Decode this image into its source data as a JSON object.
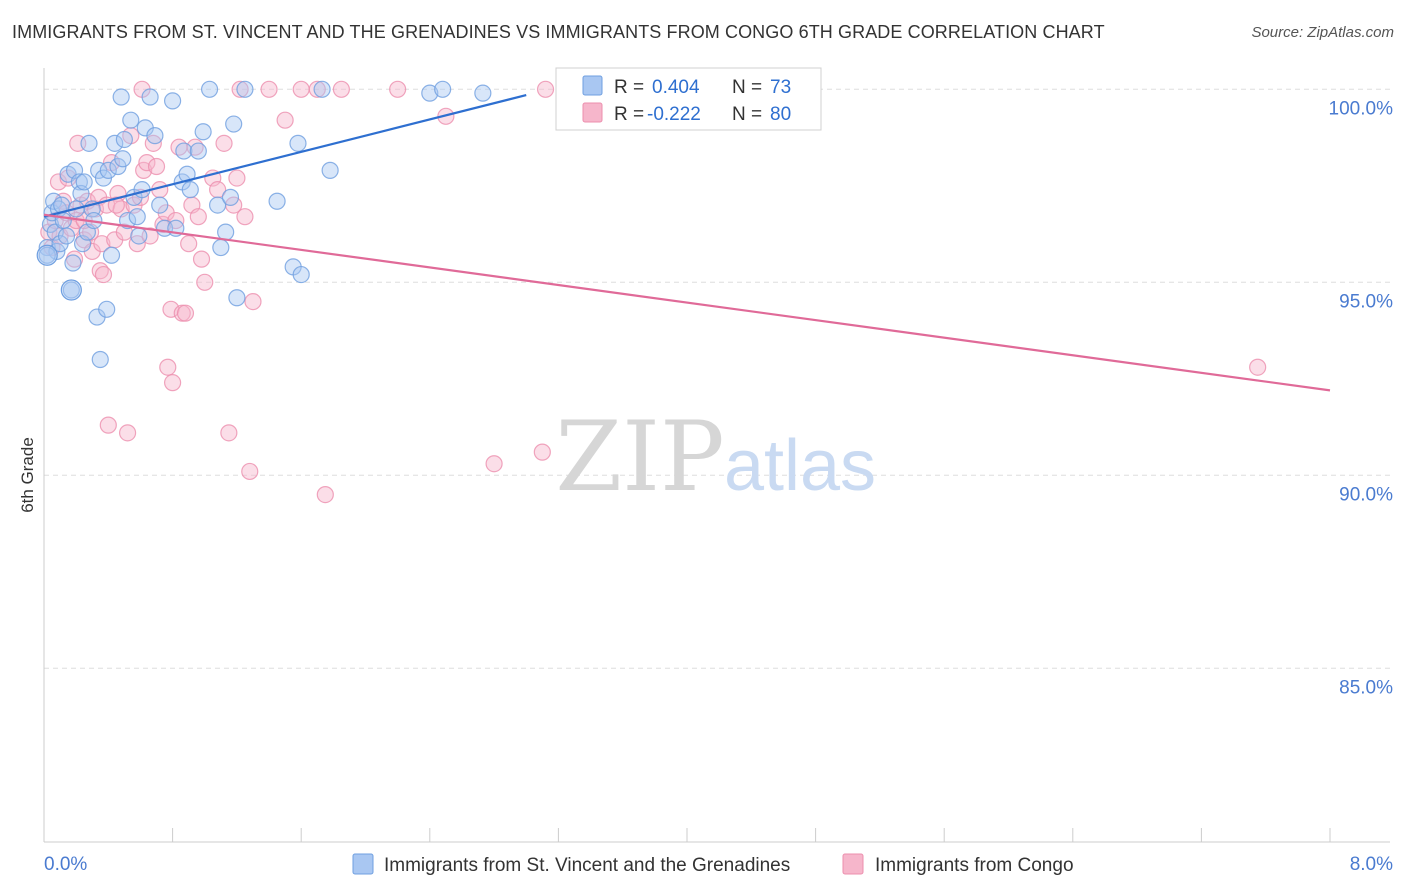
{
  "title": "IMMIGRANTS FROM ST. VINCENT AND THE GRENADINES VS IMMIGRANTS FROM CONGO 6TH GRADE CORRELATION CHART",
  "source": "Source: ZipAtlas.com",
  "watermark": {
    "zip": "ZIP",
    "atlas": "atlas"
  },
  "colors": {
    "blue_fill": "#a9c7f2",
    "blue_stroke": "#6f9fe0",
    "blue_line": "#2e6fd0",
    "pink_fill": "#f6b6cb",
    "pink_stroke": "#ec8fae",
    "pink_line": "#e06a98",
    "axis_text": "#4a7bd0",
    "grid": "#dddddd"
  },
  "legend_box": {
    "rows": [
      {
        "r_label": "R =",
        "r_value": "0.404",
        "n_label": "N =",
        "n_value": "73",
        "series": "blue"
      },
      {
        "r_label": "R =",
        "r_value": "-0.222",
        "n_label": "N =",
        "n_value": "80",
        "series": "pink"
      }
    ]
  },
  "bottom_legend": [
    {
      "label": "Immigrants from St. Vincent and the Grenadines",
      "series": "blue"
    },
    {
      "label": "Immigrants from Congo",
      "series": "pink"
    }
  ],
  "chart_data": {
    "type": "scatter",
    "title": "IMMIGRANTS FROM ST. VINCENT AND THE GRENADINES VS IMMIGRANTS FROM CONGO 6TH GRADE CORRELATION CHART",
    "xlabel": "",
    "ylabel": "6th Grade",
    "xlim": [
      0,
      8
    ],
    "ylim": [
      80.5,
      100.5
    ],
    "x_tick_labels": [
      "0.0%",
      "8.0%"
    ],
    "y_ticks": [
      85,
      90,
      95,
      100
    ],
    "y_tick_labels": [
      "85.0%",
      "90.0%",
      "95.0%",
      "100.0%"
    ],
    "grid": true,
    "legend_position": "top-center",
    "series": [
      {
        "name": "Immigrants from St. Vincent and the Grenadines",
        "R": 0.404,
        "N": 73,
        "trend": {
          "x": [
            0.0,
            3.0
          ],
          "y": [
            96.7,
            99.85
          ]
        },
        "points": [
          [
            0.02,
            95.9
          ],
          [
            0.04,
            96.5
          ],
          [
            0.05,
            96.8
          ],
          [
            0.06,
            97.1
          ],
          [
            0.07,
            96.3
          ],
          [
            0.08,
            95.8
          ],
          [
            0.09,
            96.9
          ],
          [
            0.1,
            96.0
          ],
          [
            0.11,
            97.0
          ],
          [
            0.12,
            96.6
          ],
          [
            0.14,
            96.2
          ],
          [
            0.15,
            97.8
          ],
          [
            0.17,
            94.8
          ],
          [
            0.18,
            95.5
          ],
          [
            0.19,
            97.9
          ],
          [
            0.2,
            96.9
          ],
          [
            0.22,
            97.6
          ],
          [
            0.23,
            97.3
          ],
          [
            0.24,
            96.0
          ],
          [
            0.25,
            97.6
          ],
          [
            0.27,
            96.3
          ],
          [
            0.28,
            98.6
          ],
          [
            0.3,
            96.9
          ],
          [
            0.31,
            96.6
          ],
          [
            0.33,
            94.1
          ],
          [
            0.34,
            97.9
          ],
          [
            0.35,
            93.0
          ],
          [
            0.37,
            97.7
          ],
          [
            0.39,
            94.3
          ],
          [
            0.4,
            97.9
          ],
          [
            0.42,
            95.7
          ],
          [
            0.44,
            98.6
          ],
          [
            0.46,
            98.0
          ],
          [
            0.48,
            99.8
          ],
          [
            0.49,
            98.2
          ],
          [
            0.5,
            98.7
          ],
          [
            0.52,
            96.6
          ],
          [
            0.54,
            99.2
          ],
          [
            0.56,
            97.2
          ],
          [
            0.58,
            96.7
          ],
          [
            0.59,
            96.2
          ],
          [
            0.61,
            97.4
          ],
          [
            0.63,
            99.0
          ],
          [
            0.66,
            99.8
          ],
          [
            0.69,
            98.8
          ],
          [
            0.72,
            97.0
          ],
          [
            0.75,
            96.4
          ],
          [
            0.8,
            99.7
          ],
          [
            0.82,
            96.4
          ],
          [
            0.86,
            97.6
          ],
          [
            0.87,
            98.4
          ],
          [
            0.89,
            97.8
          ],
          [
            0.91,
            97.4
          ],
          [
            0.96,
            98.4
          ],
          [
            0.99,
            98.9
          ],
          [
            1.03,
            100.0
          ],
          [
            1.08,
            97.0
          ],
          [
            1.1,
            95.9
          ],
          [
            1.13,
            96.3
          ],
          [
            1.16,
            97.2
          ],
          [
            1.18,
            99.1
          ],
          [
            1.2,
            94.6
          ],
          [
            1.25,
            100.0
          ],
          [
            1.45,
            97.1
          ],
          [
            1.55,
            95.4
          ],
          [
            1.58,
            98.6
          ],
          [
            1.6,
            95.2
          ],
          [
            1.73,
            100.0
          ],
          [
            1.78,
            97.9
          ],
          [
            2.4,
            99.9
          ],
          [
            2.48,
            100.0
          ],
          [
            2.73,
            99.9
          ],
          [
            0.02,
            95.7
          ]
        ]
      },
      {
        "name": "Immigrants from Congo",
        "R": -0.222,
        "N": 80,
        "trend": {
          "x": [
            0.0,
            8.0
          ],
          "y": [
            96.75,
            92.2
          ]
        },
        "points": [
          [
            0.03,
            96.3
          ],
          [
            0.05,
            95.9
          ],
          [
            0.07,
            96.6
          ],
          [
            0.09,
            97.6
          ],
          [
            0.1,
            96.2
          ],
          [
            0.12,
            97.1
          ],
          [
            0.14,
            96.8
          ],
          [
            0.15,
            97.7
          ],
          [
            0.17,
            96.4
          ],
          [
            0.19,
            95.6
          ],
          [
            0.2,
            96.6
          ],
          [
            0.21,
            98.6
          ],
          [
            0.23,
            97.0
          ],
          [
            0.25,
            96.1
          ],
          [
            0.27,
            97.1
          ],
          [
            0.29,
            96.3
          ],
          [
            0.3,
            95.8
          ],
          [
            0.32,
            96.9
          ],
          [
            0.34,
            97.2
          ],
          [
            0.35,
            95.3
          ],
          [
            0.36,
            96.0
          ],
          [
            0.37,
            95.2
          ],
          [
            0.39,
            97.0
          ],
          [
            0.4,
            91.3
          ],
          [
            0.42,
            98.1
          ],
          [
            0.44,
            96.1
          ],
          [
            0.46,
            97.3
          ],
          [
            0.48,
            96.9
          ],
          [
            0.5,
            96.3
          ],
          [
            0.52,
            91.1
          ],
          [
            0.54,
            98.8
          ],
          [
            0.56,
            97.0
          ],
          [
            0.58,
            96.0
          ],
          [
            0.6,
            97.2
          ],
          [
            0.61,
            100.0
          ],
          [
            0.62,
            97.9
          ],
          [
            0.64,
            98.1
          ],
          [
            0.66,
            96.2
          ],
          [
            0.68,
            98.6
          ],
          [
            0.7,
            98.0
          ],
          [
            0.72,
            97.4
          ],
          [
            0.74,
            96.5
          ],
          [
            0.76,
            96.8
          ],
          [
            0.77,
            92.8
          ],
          [
            0.79,
            94.3
          ],
          [
            0.8,
            92.4
          ],
          [
            0.82,
            96.6
          ],
          [
            0.84,
            98.5
          ],
          [
            0.86,
            94.2
          ],
          [
            0.88,
            94.2
          ],
          [
            0.9,
            96.0
          ],
          [
            0.92,
            97.0
          ],
          [
            0.94,
            98.5
          ],
          [
            0.96,
            96.7
          ],
          [
            0.98,
            95.6
          ],
          [
            1.0,
            95.0
          ],
          [
            1.05,
            97.7
          ],
          [
            1.08,
            97.4
          ],
          [
            1.12,
            98.6
          ],
          [
            1.15,
            91.1
          ],
          [
            1.18,
            97.0
          ],
          [
            1.2,
            97.7
          ],
          [
            1.22,
            100.0
          ],
          [
            1.25,
            96.7
          ],
          [
            1.28,
            90.1
          ],
          [
            1.3,
            94.5
          ],
          [
            1.4,
            100.0
          ],
          [
            1.5,
            99.2
          ],
          [
            1.6,
            100.0
          ],
          [
            1.7,
            100.0
          ],
          [
            1.75,
            89.5
          ],
          [
            1.85,
            100.0
          ],
          [
            2.2,
            100.0
          ],
          [
            2.5,
            99.3
          ],
          [
            2.8,
            90.3
          ],
          [
            3.1,
            90.6
          ],
          [
            3.12,
            100.0
          ],
          [
            7.55,
            92.8
          ],
          [
            0.25,
            96.6
          ],
          [
            0.45,
            97.0
          ]
        ]
      }
    ]
  }
}
